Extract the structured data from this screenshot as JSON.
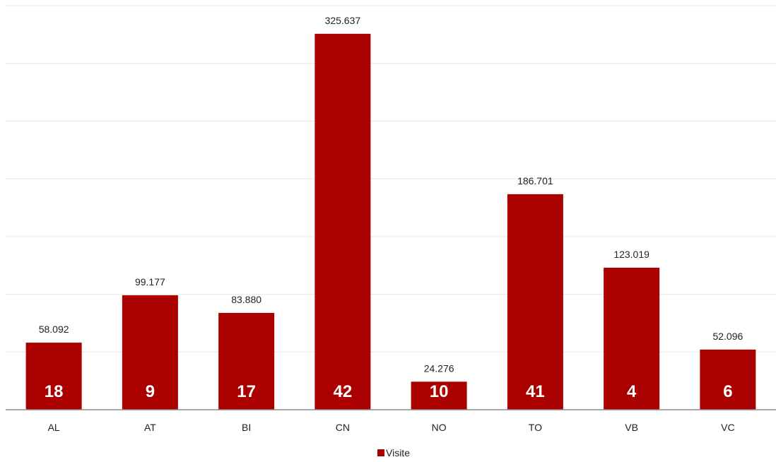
{
  "chart_data": {
    "type": "bar",
    "categories": [
      "AL",
      "AT",
      "BI",
      "CN",
      "NO",
      "TO",
      "VB",
      "VC"
    ],
    "series": [
      {
        "name": "Visite",
        "values": [
          58092,
          99177,
          83880,
          325637,
          24276,
          186701,
          123019,
          52096
        ],
        "value_labels": [
          "58.092",
          "99.177",
          "83.880",
          "325.637",
          "24.276",
          "186.701",
          "123.019",
          "52.096"
        ],
        "inner_labels": [
          "18",
          "9",
          "17",
          "42",
          "10",
          "41",
          "4",
          "6"
        ]
      }
    ],
    "ylim": [
      0,
      350000
    ],
    "grid": true,
    "legend": "bottom-center",
    "colors": {
      "bar": "#ab0000",
      "grid": "#e8e8e8",
      "axis": "#8c8c8c"
    }
  }
}
